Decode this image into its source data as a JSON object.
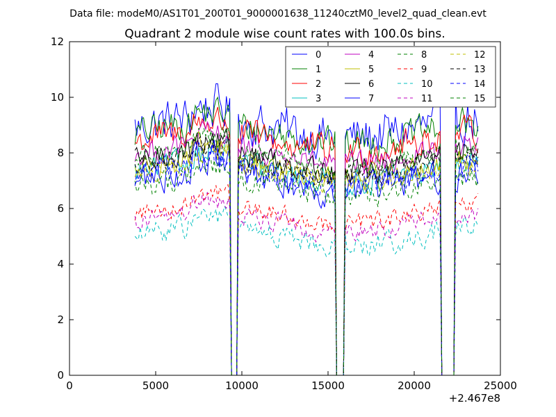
{
  "header": {
    "data_file": "Data file: modeM0/AS1T01_200T01_9000001638_11240cztM0_level2_quad_clean.evt"
  },
  "chart_data": {
    "type": "line",
    "title": "Quadrant 2 module wise count rates with 100.0s bins.",
    "xlabel": "",
    "ylabel": "",
    "xlim": [
      0,
      25000
    ],
    "ylim": [
      0,
      12
    ],
    "x_offset_label": "+2.467e8",
    "xticks": [
      0,
      5000,
      10000,
      15000,
      20000,
      25000
    ],
    "xtick_labels": [
      "0",
      "5000",
      "10000",
      "15000",
      "20000",
      "25000"
    ],
    "yticks": [
      0,
      2,
      4,
      6,
      8,
      10,
      12
    ],
    "ytick_labels": [
      "0",
      "2",
      "4",
      "6",
      "8",
      "10",
      "12"
    ],
    "grid": false,
    "legend_position": "top-right",
    "x_range": [
      3800,
      23700
    ],
    "bin_seconds": 100,
    "gaps": [
      [
        9400,
        9700
      ],
      [
        15500,
        15900
      ],
      [
        21600,
        22300
      ]
    ],
    "series": [
      {
        "name": "0",
        "color": "#0000ff",
        "dash": "solid",
        "level": 8.9,
        "noise": 0.7
      },
      {
        "name": "1",
        "color": "#008000",
        "dash": "solid",
        "level": 8.7,
        "noise": 0.5
      },
      {
        "name": "2",
        "color": "#ff0000",
        "dash": "solid",
        "level": 8.4,
        "noise": 0.5
      },
      {
        "name": "3",
        "color": "#00bfbf",
        "dash": "solid",
        "level": 7.3,
        "noise": 0.4
      },
      {
        "name": "4",
        "color": "#bf00bf",
        "dash": "solid",
        "level": 7.9,
        "noise": 0.4
      },
      {
        "name": "5",
        "color": "#bfbf00",
        "dash": "solid",
        "level": 7.4,
        "noise": 0.4
      },
      {
        "name": "6",
        "color": "#000000",
        "dash": "solid",
        "level": 7.7,
        "noise": 0.4
      },
      {
        "name": "7",
        "color": "#0000ff",
        "dash": "solid",
        "level": 7.0,
        "noise": 0.5
      },
      {
        "name": "8",
        "color": "#008000",
        "dash": "dashed",
        "level": 6.8,
        "noise": 0.4
      },
      {
        "name": "9",
        "color": "#ff0000",
        "dash": "dashed",
        "level": 5.8,
        "noise": 0.3
      },
      {
        "name": "10",
        "color": "#00bfbf",
        "dash": "dashed",
        "level": 5.0,
        "noise": 0.35
      },
      {
        "name": "11",
        "color": "#bf00bf",
        "dash": "dashed",
        "level": 5.5,
        "noise": 0.3
      },
      {
        "name": "12",
        "color": "#bfbf00",
        "dash": "dashed",
        "level": 7.3,
        "noise": 0.35
      },
      {
        "name": "13",
        "color": "#000000",
        "dash": "dashed",
        "level": 7.5,
        "noise": 0.35
      },
      {
        "name": "14",
        "color": "#0000ff",
        "dash": "dashed",
        "level": 7.2,
        "noise": 0.4
      },
      {
        "name": "15",
        "color": "#008000",
        "dash": "dashed",
        "level": 7.8,
        "noise": 0.35
      }
    ]
  }
}
